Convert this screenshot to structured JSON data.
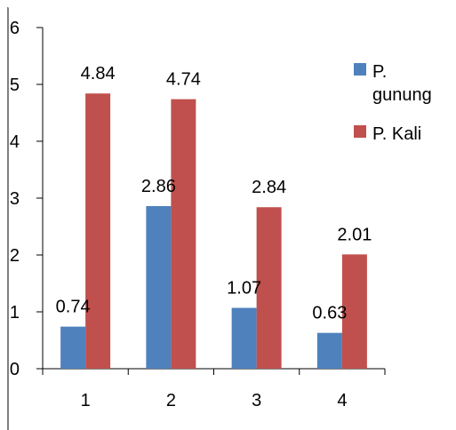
{
  "chart_data": {
    "type": "bar",
    "categories": [
      "1",
      "2",
      "3",
      "4"
    ],
    "series": [
      {
        "name": "P. gunung",
        "values": [
          0.74,
          2.86,
          1.07,
          0.63
        ],
        "color": "#4F81BD",
        "labels": [
          "0.74",
          "2.86",
          "1.07",
          "0.63"
        ]
      },
      {
        "name": "P. Kali",
        "values": [
          4.84,
          4.74,
          2.84,
          2.01
        ],
        "color": "#C0504D",
        "labels": [
          "4.84",
          "4.74",
          "2.84",
          "2.01"
        ]
      }
    ],
    "y_ticks": [
      "0",
      "1",
      "2",
      "3",
      "4",
      "5",
      "6"
    ],
    "ylim": [
      0,
      6
    ],
    "legend_position": "right",
    "legend_lines": [
      [
        "P.",
        "gunung"
      ],
      [
        "P. Kali"
      ]
    ],
    "grid": false
  }
}
